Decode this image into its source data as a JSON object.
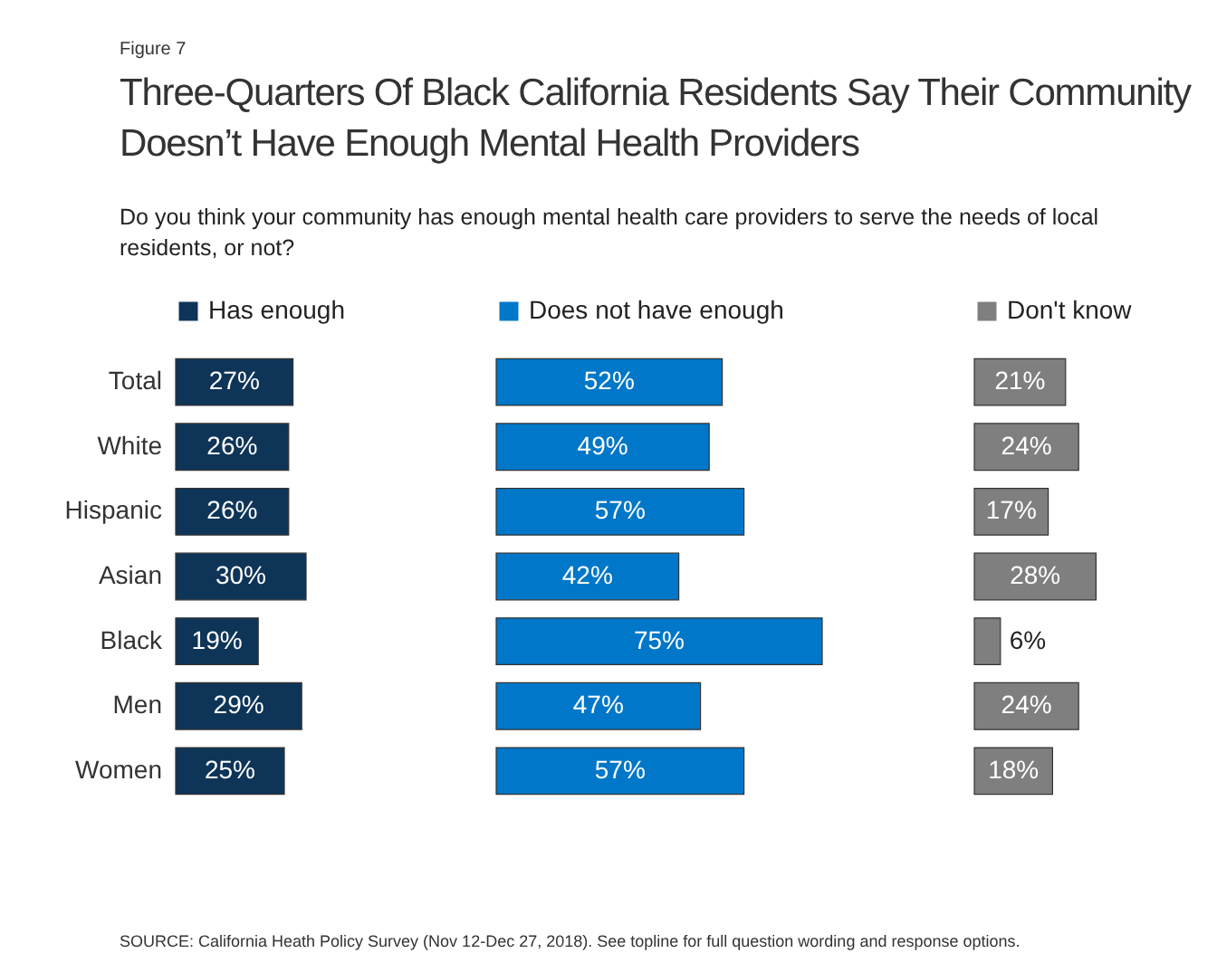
{
  "chart_data": [
    {
      "type": "bar",
      "orientation": "horizontal",
      "title": "Three-Quarters Of Black California Residents Say Their Community Doesn’t Have Enough Mental Health Providers",
      "subtitle": "Do you think your community has enough mental health care providers to serve the needs of local residents, or not?",
      "annotations": [
        "Figure 7",
        "SOURCE: California Heath Policy Survey (Nov 12-Dec 27, 2018). See topline for full question wording and response options."
      ],
      "categories": [
        "Total",
        "White",
        "Hispanic",
        "Asian",
        "Black",
        "Men",
        "Women"
      ],
      "series": [
        {
          "name": "Has enough",
          "color": "#0e3558",
          "values": [
            27,
            26,
            26,
            30,
            19,
            29,
            25
          ],
          "value_labels": [
            "27%",
            "26%",
            "26%",
            "30%",
            "19%",
            "29%",
            "25%"
          ]
        }
      ],
      "legend": "top",
      "tick_labels": "y"
    },
    {
      "type": "bar",
      "orientation": "horizontal",
      "categories": [
        null,
        null,
        null,
        null,
        null,
        null,
        null
      ],
      "series": [
        {
          "name": "Does not have enough",
          "color": "#0077c8",
          "values": [
            52,
            49,
            57,
            42,
            75,
            47,
            57
          ],
          "value_labels": [
            "52%",
            "49%",
            "57%",
            "42%",
            "75%",
            "47%",
            "57%"
          ]
        }
      ],
      "legend": "top"
    },
    {
      "type": "bar",
      "orientation": "horizontal",
      "categories": [
        null,
        null,
        null,
        null,
        null,
        null,
        null
      ],
      "series": [
        {
          "name": "Don't know",
          "color": "#7f7f7f",
          "values": [
            21,
            24,
            17,
            28,
            6,
            24,
            18
          ],
          "value_labels": [
            "21%",
            "24%",
            "17%",
            "28%",
            "6%",
            "24%",
            "18%"
          ]
        }
      ],
      "legend": "top"
    }
  ]
}
